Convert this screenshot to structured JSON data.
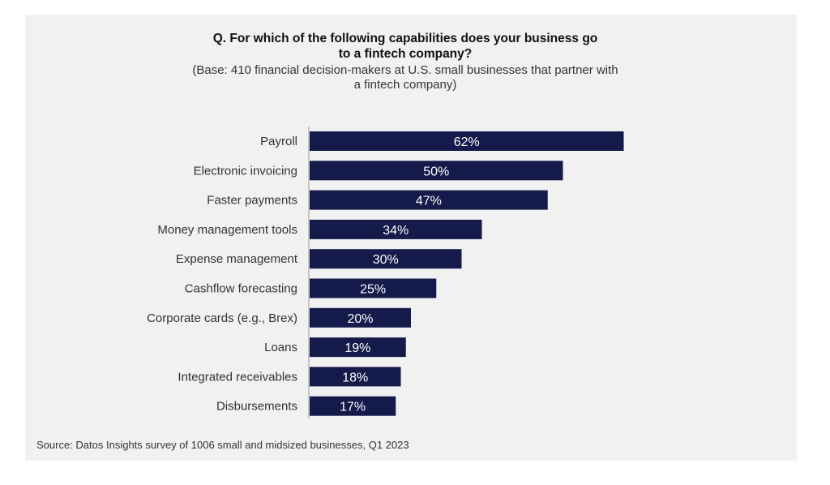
{
  "header": {
    "title_line1": "Q. For which of the following capabilities does your business go",
    "title_line2": "to a fintech company?",
    "subtitle_line1": "(Base: 410 financial decision-makers at U.S. small businesses that partner with",
    "subtitle_line2": "a fintech company)"
  },
  "footer": {
    "source": "Source: Datos Insights survey of 1006 small and midsized businesses, Q1 2023"
  },
  "colors": {
    "bar": "#141a4a",
    "background": "#f1f1f1",
    "label": "#ffffff"
  },
  "chart_data": {
    "type": "bar",
    "orientation": "horizontal",
    "categories": [
      "Payroll",
      "Electronic invoicing",
      "Faster payments",
      "Money management tools",
      "Expense management",
      "Cashflow forecasting",
      "Corporate cards (e.g., Brex)",
      "Loans",
      "Integrated receivables",
      "Disbursements"
    ],
    "values": [
      62,
      50,
      47,
      34,
      30,
      25,
      20,
      19,
      18,
      17
    ],
    "data_labels": [
      "62%",
      "50%",
      "47%",
      "34%",
      "30%",
      "25%",
      "20%",
      "19%",
      "18%",
      "17%"
    ],
    "grid": false,
    "legend": "none"
  }
}
